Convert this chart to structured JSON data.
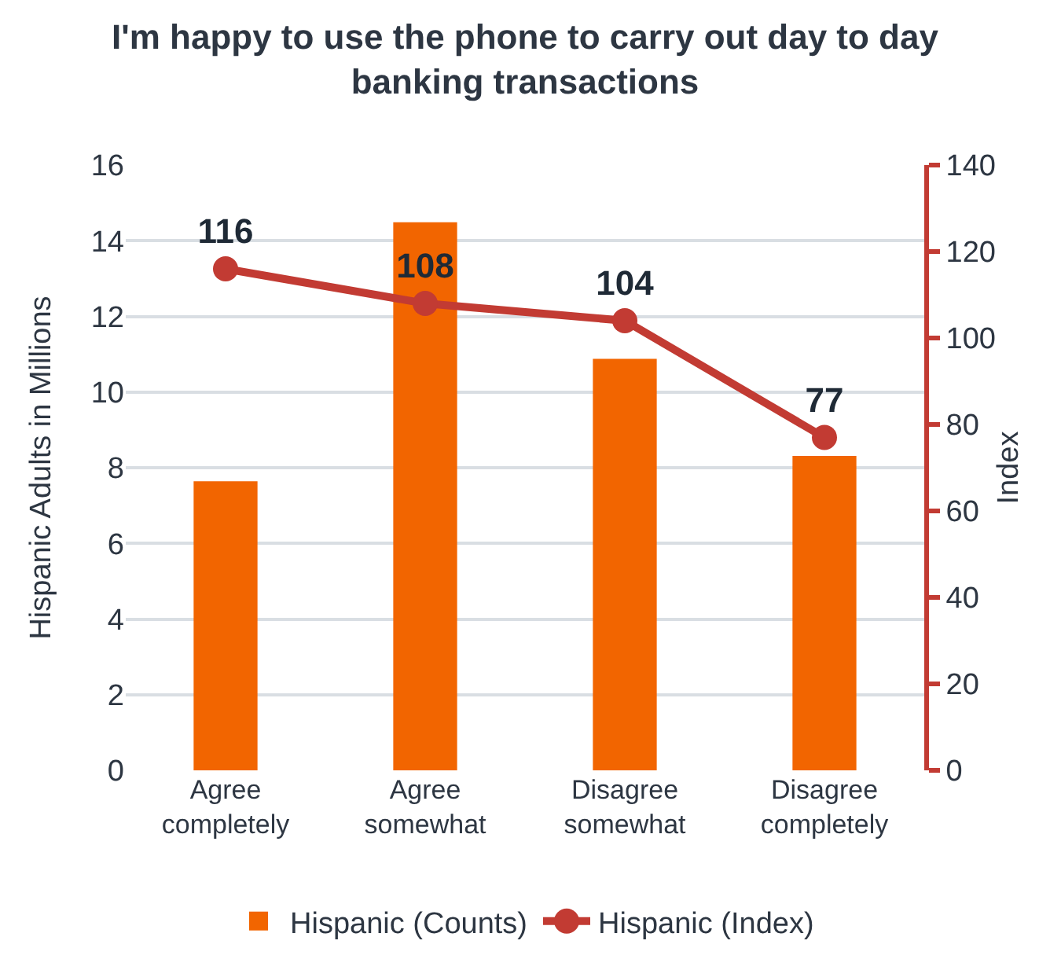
{
  "chart_data": {
    "type": "bar",
    "title": "I'm happy to use the phone to carry out day to day banking transactions",
    "ylabel": "Hispanic Adults in Millions",
    "y2label": "Index",
    "categories": [
      "Agree completely",
      "Agree somewhat",
      "Disagree somewhat",
      "Disagree completely"
    ],
    "series": [
      {
        "name": "Hispanic (Counts)",
        "color": "#f26500",
        "values": [
          7.64,
          14.49,
          10.88,
          8.31
        ]
      },
      {
        "name": "Hispanic (Index)",
        "type": "line",
        "axis": "y2",
        "color": "#c23b33",
        "values": [
          116,
          108,
          104,
          77
        ],
        "value_labels": [
          "116",
          "108",
          "104",
          "77"
        ]
      }
    ],
    "ylim": [
      0,
      16
    ],
    "yticks": [
      0,
      2,
      4,
      6,
      8,
      10,
      12,
      14,
      16
    ],
    "y2lim": [
      0,
      140
    ],
    "y2ticks": [
      0,
      20,
      40,
      60,
      80,
      100,
      120,
      140
    ],
    "grid": "y",
    "legend": "bottom",
    "marker": "circle"
  }
}
